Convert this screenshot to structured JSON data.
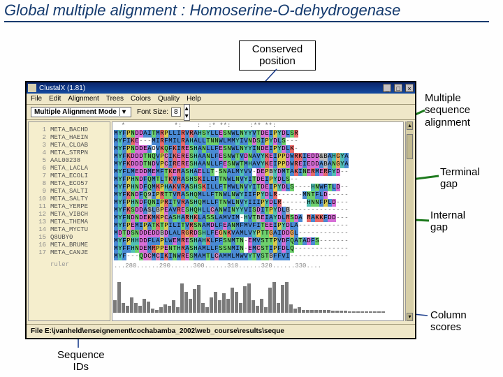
{
  "slide": {
    "title": "Global multiple alignment : Homoserine-O-dehydrogenase"
  },
  "callouts": {
    "conserved": "Conserved\nposition",
    "msa": "Multiple\nsequence\nalignment",
    "terminal": "Terminal\ngap",
    "internal": "Internal\ngap",
    "colscores": "Column\nscores",
    "seqids": "Sequence\nIDs"
  },
  "colors": {
    "titlebar": "#0a246a",
    "panel": "#efe7c8",
    "callout_arrow": "#1c3d8c",
    "green_arrow": "#1e7a1e"
  },
  "app": {
    "title": "ClustalX (1.81)",
    "menus": [
      "File",
      "Edit",
      "Alignment",
      "Trees",
      "Colors",
      "Quality",
      "Help"
    ],
    "mode_label": "Multiple Alignment Mode",
    "font_label": "Font Size:",
    "font_value": "8",
    "status": "File E:\\jvanheld\\enseignement\\cochabamba_2002\\web_course\\results\\seque",
    "ruler": "...280......290......300......310......320......330....",
    "markers": "  *             *:    :  :* **:     :** **:              "
  },
  "ids": [
    "META_BACHD",
    "META_HAEIN",
    "META_CLOAB",
    "META_STRPN",
    "AAL00238",
    "META_LACLA",
    "META_ECOLI",
    "META_ECO57",
    "META_SALTI",
    "META_SALTY",
    "META_YERPE",
    "META_VIBCH",
    "META_THEMA",
    "META_MYCTU",
    "Q8UBY0",
    "META_BRUME",
    "META_CANJE"
  ],
  "sequences": [
    "MYFPNDDAITMRPLLIRVRAHSYLLESNWLNYYVTDEIPYDLSR",
    "MYFIKE---MIRFMILRAHALLTNNWLMMYIVNDSIPYDLS---",
    "MYFPNDDEAOVKQFKIRESHANLLFESNWLNYYINDEIPYDLK-",
    "MYFKDDDTNQVPCIKERESHAANLFESNWTVDNAVYKEIPPDWRKIEDD&BAHGYA",
    "MYFKDDDTNDVPCIRERESHAANLLFESNWTMHAVYKEIPPDWREIEDDABANGYA",
    "MYFLMEDDMEMFTKERASHAELLT-SNALMYVV-DEPBYDMTAKINERMERFYD--",
    "MYFPHNDFQMTLTKVRASHSKILLFTNWLNVYITDEIPYDLS--",
    "MYFPHNDFQMKPHAKVRASHSKILLFTMWLNVYITDEIPYDLS----HNWFTLD--",
    "MYFKNDFQ9IPRTTVRASHQMLLFTNWLNWYIIFPYDLR------MNTFLD-----",
    "MYFPHNDFQNIPRITVRASHQMLLFTNWLNVYIIIPYDLR------HNNFPLD---",
    "MYFKSDDA$LBPEAVRESHQHLLCANWINYYVISDITPYDLB--------------",
    "MYFNDNDEKMKPCASHARHKLASSLAMVIM-HVTBEIAYDLRSDA RAKKFDD---",
    "MYFPEMIPATKTPILITVRSNAMDLFEANMFMVFITEEIPYDLA------------",
    "MDTDSNDDEDDBDLALRGRDSHLFEGNKVAMLVYPTTGAIDDGL------------",
    "MYFPHHDDFLAPLWEMRESHAHKLFFSNMTN-EMVSTTPVDFQATADFS-------",
    "MYFFHNDEMRPPENTHRASHAMLLFSSNMIN-EMCSTIPFDLQ-------------",
    "MYF---QDCMCIKINWRESMAMTLCAMMLMWVYTVSTBFFVI--------------"
  ],
  "residue_colors": {
    "M": "#4a8ad4",
    "Y": "#52c0b4",
    "F": "#4a8ad4",
    "P": "#d9c94a",
    "N": "#6dd06d",
    "D": "#d76fd7",
    "E": "#d76fd7",
    "A": "#4a8ad4",
    "I": "#4a8ad4",
    "T": "#6dd06d",
    "R": "#e86a6a",
    "L": "#4a8ad4",
    "V": "#4a8ad4",
    "H": "#52c0b4",
    "S": "#6dd06d",
    "W": "#4a8ad4",
    "K": "#e86a6a",
    "Q": "#6dd06d",
    "C": "#d77fb8",
    "G": "#e8a860",
    "B": "#bcbcbc",
    "9": "#bcbcbc",
    "0": "#bcbcbc",
    "$": "#bcbcbc",
    "&": "#bcbcbc",
    "-": "#ffffff"
  },
  "column_scores": [
    18,
    44,
    14,
    10,
    22,
    14,
    10,
    20,
    16,
    6,
    4,
    8,
    12,
    10,
    18,
    8,
    42,
    30,
    20,
    34,
    40,
    14,
    8,
    22,
    30,
    18,
    28,
    20,
    36,
    30,
    14,
    38,
    42,
    18,
    10,
    20,
    8,
    36,
    44,
    14,
    40,
    44,
    12,
    6,
    8,
    4,
    4,
    4,
    4,
    4,
    4,
    4,
    3,
    3,
    3,
    3,
    2,
    2,
    2,
    2,
    2,
    2,
    2,
    2,
    2
  ]
}
